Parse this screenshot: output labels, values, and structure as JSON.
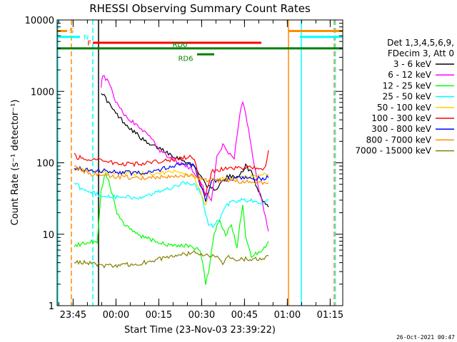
{
  "chart_data": {
    "type": "line",
    "title": "RHESSI Observing Summary Count Rates",
    "xlabel": "Start Time (23-Nov-03 23:39:22)",
    "ylabel": "Count Rate (s⁻¹ detector⁻¹)",
    "ylog": true,
    "xunit": "minutes after 23:39:22",
    "xlim": [
      0,
      100
    ],
    "ylim": [
      1,
      10000
    ],
    "x_ticks": [
      {
        "t": 5.6,
        "label": "23:45"
      },
      {
        "t": 20.6,
        "label": "00:00"
      },
      {
        "t": 35.6,
        "label": "00:15"
      },
      {
        "t": 50.6,
        "label": "00:30"
      },
      {
        "t": 65.6,
        "label": "00:45"
      },
      {
        "t": 80.6,
        "label": "01:00"
      },
      {
        "t": 95.6,
        "label": "01:15"
      }
    ],
    "y_ticks": [
      {
        "v": 1,
        "label": "1"
      },
      {
        "v": 10,
        "label": "10"
      },
      {
        "v": 100,
        "label": "100"
      },
      {
        "v": 1000,
        "label": "1000"
      },
      {
        "v": 10000,
        "label": "10000"
      }
    ],
    "legend_header": [
      "Det 1,3,4,5,6,9,",
      "FDecim 3, Att 0"
    ],
    "series": [
      {
        "name": "3 - 6 keV",
        "color": "#000000",
        "points": [
          [
            15.4,
            1000
          ],
          [
            17,
            800
          ],
          [
            20,
            520
          ],
          [
            24,
            350
          ],
          [
            28,
            250
          ],
          [
            32,
            180
          ],
          [
            36,
            160
          ],
          [
            40,
            130
          ],
          [
            44,
            110
          ],
          [
            48,
            90
          ],
          [
            50,
            70
          ],
          [
            52,
            50
          ],
          [
            54,
            42
          ],
          [
            56,
            45
          ],
          [
            58,
            55
          ],
          [
            60,
            65
          ],
          [
            62,
            62
          ],
          [
            64,
            70
          ],
          [
            66,
            90
          ],
          [
            68,
            75
          ],
          [
            70,
            45
          ],
          [
            72,
            30
          ],
          [
            74,
            24
          ]
        ]
      },
      {
        "name": "6 - 12 keV",
        "color": "#ff00ff",
        "points": [
          [
            15.4,
            1200
          ],
          [
            16,
            1650
          ],
          [
            18,
            1400
          ],
          [
            20,
            800
          ],
          [
            24,
            450
          ],
          [
            28,
            330
          ],
          [
            32,
            240
          ],
          [
            36,
            150
          ],
          [
            40,
            115
          ],
          [
            44,
            95
          ],
          [
            48,
            75
          ],
          [
            50,
            55
          ],
          [
            52,
            38
          ],
          [
            54,
            30
          ],
          [
            56,
            120
          ],
          [
            58,
            180
          ],
          [
            60,
            130
          ],
          [
            62,
            120
          ],
          [
            64,
            500
          ],
          [
            65,
            750
          ],
          [
            66,
            500
          ],
          [
            68,
            160
          ],
          [
            70,
            55
          ],
          [
            72,
            25
          ],
          [
            74,
            11
          ]
        ]
      },
      {
        "name": "12 - 25 keV",
        "color": "#00ff00",
        "points": [
          [
            6,
            7
          ],
          [
            10,
            7.5
          ],
          [
            14,
            8
          ],
          [
            15.4,
            40
          ],
          [
            17,
            75
          ],
          [
            19,
            40
          ],
          [
            21,
            20
          ],
          [
            24,
            13
          ],
          [
            28,
            10
          ],
          [
            34,
            8
          ],
          [
            40,
            7
          ],
          [
            46,
            7
          ],
          [
            50,
            6
          ],
          [
            51,
            4
          ],
          [
            52,
            2
          ],
          [
            53,
            3
          ],
          [
            55,
            11
          ],
          [
            57,
            15
          ],
          [
            59,
            10
          ],
          [
            61,
            14
          ],
          [
            63,
            6
          ],
          [
            64,
            15
          ],
          [
            65,
            25
          ],
          [
            66,
            9
          ],
          [
            68,
            5
          ],
          [
            72,
            6
          ],
          [
            74,
            8
          ]
        ]
      },
      {
        "name": "25 - 50 keV",
        "color": "#00ffff",
        "points": [
          [
            6,
            55
          ],
          [
            8,
            45
          ],
          [
            12,
            38
          ],
          [
            16,
            35
          ],
          [
            20,
            33
          ],
          [
            28,
            33
          ],
          [
            32,
            35
          ],
          [
            36,
            40
          ],
          [
            40,
            45
          ],
          [
            44,
            52
          ],
          [
            48,
            50
          ],
          [
            50,
            40
          ],
          [
            52,
            20
          ],
          [
            53,
            14
          ],
          [
            55,
            13
          ],
          [
            57,
            17
          ],
          [
            59,
            25
          ],
          [
            61,
            28
          ],
          [
            63,
            29
          ],
          [
            65,
            30
          ],
          [
            67,
            30
          ],
          [
            70,
            28
          ],
          [
            72,
            28
          ],
          [
            74,
            30
          ]
        ]
      },
      {
        "name": "50 - 100 keV",
        "color": "#ffd200",
        "points": [
          [
            6,
            80
          ],
          [
            10,
            78
          ],
          [
            14,
            75
          ],
          [
            18,
            72
          ],
          [
            24,
            70
          ],
          [
            30,
            70
          ],
          [
            36,
            72
          ],
          [
            42,
            75
          ],
          [
            48,
            65
          ],
          [
            50,
            40
          ],
          [
            52,
            25
          ],
          [
            54,
            55
          ],
          [
            58,
            60
          ],
          [
            62,
            62
          ],
          [
            66,
            64
          ],
          [
            70,
            65
          ],
          [
            74,
            70
          ]
        ]
      },
      {
        "name": "100 - 300 keV",
        "color": "#ff0000",
        "points": [
          [
            6,
            140
          ],
          [
            7,
            120
          ],
          [
            10,
            115
          ],
          [
            14,
            110
          ],
          [
            20,
            100
          ],
          [
            26,
            95
          ],
          [
            32,
            100
          ],
          [
            36,
            105
          ],
          [
            40,
            110
          ],
          [
            44,
            118
          ],
          [
            48,
            120
          ],
          [
            50,
            55
          ],
          [
            52,
            35
          ],
          [
            54,
            75
          ],
          [
            58,
            82
          ],
          [
            62,
            84
          ],
          [
            66,
            85
          ],
          [
            70,
            83
          ],
          [
            73,
            85
          ],
          [
            74,
            150
          ]
        ]
      },
      {
        "name": "300 - 800 keV",
        "color": "#0000ff",
        "points": [
          [
            6,
            85
          ],
          [
            10,
            80
          ],
          [
            14,
            78
          ],
          [
            20,
            75
          ],
          [
            26,
            72
          ],
          [
            32,
            75
          ],
          [
            36,
            80
          ],
          [
            40,
            90
          ],
          [
            44,
            95
          ],
          [
            48,
            90
          ],
          [
            50,
            50
          ],
          [
            52,
            30
          ],
          [
            54,
            55
          ],
          [
            58,
            58
          ],
          [
            62,
            60
          ],
          [
            66,
            61
          ],
          [
            70,
            60
          ],
          [
            74,
            62
          ]
        ]
      },
      {
        "name": "800 - 7000 keV",
        "color": "#ff8c00",
        "points": [
          [
            6,
            90
          ],
          [
            8,
            80
          ],
          [
            12,
            70
          ],
          [
            18,
            65
          ],
          [
            24,
            63
          ],
          [
            30,
            62
          ],
          [
            36,
            64
          ],
          [
            42,
            66
          ],
          [
            48,
            65
          ],
          [
            50,
            60
          ],
          [
            52,
            58
          ],
          [
            56,
            57
          ],
          [
            60,
            56
          ],
          [
            64,
            55
          ],
          [
            68,
            54
          ],
          [
            72,
            53
          ],
          [
            74,
            52
          ]
        ]
      },
      {
        "name": "7000 - 15000 keV",
        "color": "#808000",
        "points": [
          [
            6,
            4
          ],
          [
            10,
            4
          ],
          [
            14,
            3.8
          ],
          [
            16,
            3.6
          ],
          [
            20,
            3.6
          ],
          [
            26,
            3.8
          ],
          [
            30,
            4
          ],
          [
            36,
            4.5
          ],
          [
            42,
            5
          ],
          [
            48,
            5.5
          ],
          [
            50,
            5
          ],
          [
            52,
            5.2
          ],
          [
            56,
            5
          ],
          [
            58,
            4
          ],
          [
            60,
            5
          ],
          [
            62,
            4.5
          ],
          [
            66,
            4.5
          ],
          [
            70,
            4.5
          ],
          [
            72,
            4.5
          ],
          [
            74,
            5
          ]
        ]
      }
    ],
    "flag_bars": [
      {
        "label": "S",
        "color": "#ff8c00",
        "segments": [
          [
            0,
            3.5
          ],
          [
            81,
            100
          ]
        ],
        "level": 7000
      },
      {
        "label": "N",
        "color": "#00ffff",
        "segments": [
          [
            0,
            8
          ],
          [
            85,
            100
          ]
        ],
        "level": 5800
      },
      {
        "label": "F",
        "color": "#ff0000",
        "segments": [
          [
            12.5,
            71.5
          ]
        ],
        "level": 4800
      },
      {
        "label": "RD0",
        "color": "#008000",
        "segments": [
          [
            0,
            100
          ]
        ],
        "level": 4000
      },
      {
        "label": "RD6",
        "color": "#008000",
        "segments": [
          [
            49,
            55
          ]
        ],
        "level": 3300
      }
    ],
    "vertical_markers": [
      {
        "t": 0,
        "color": "#00ffff",
        "style": "solid"
      },
      {
        "t": 5,
        "color": "#ff8c00",
        "style": "dashed"
      },
      {
        "t": 12.5,
        "color": "#00ffff",
        "style": "dashed"
      },
      {
        "t": 14.5,
        "color": "#000000",
        "style": "solid"
      },
      {
        "t": 81,
        "color": "#ff8c00",
        "style": "solid"
      },
      {
        "t": 85.5,
        "color": "#00ffff",
        "style": "solid"
      },
      {
        "t": 97,
        "color": "#ff8c00",
        "style": "dashed"
      },
      {
        "t": 97.4,
        "color": "#00ffff",
        "style": "dashed"
      }
    ]
  },
  "footer": {
    "timestamp": "26-Oct-2021 00:47"
  }
}
